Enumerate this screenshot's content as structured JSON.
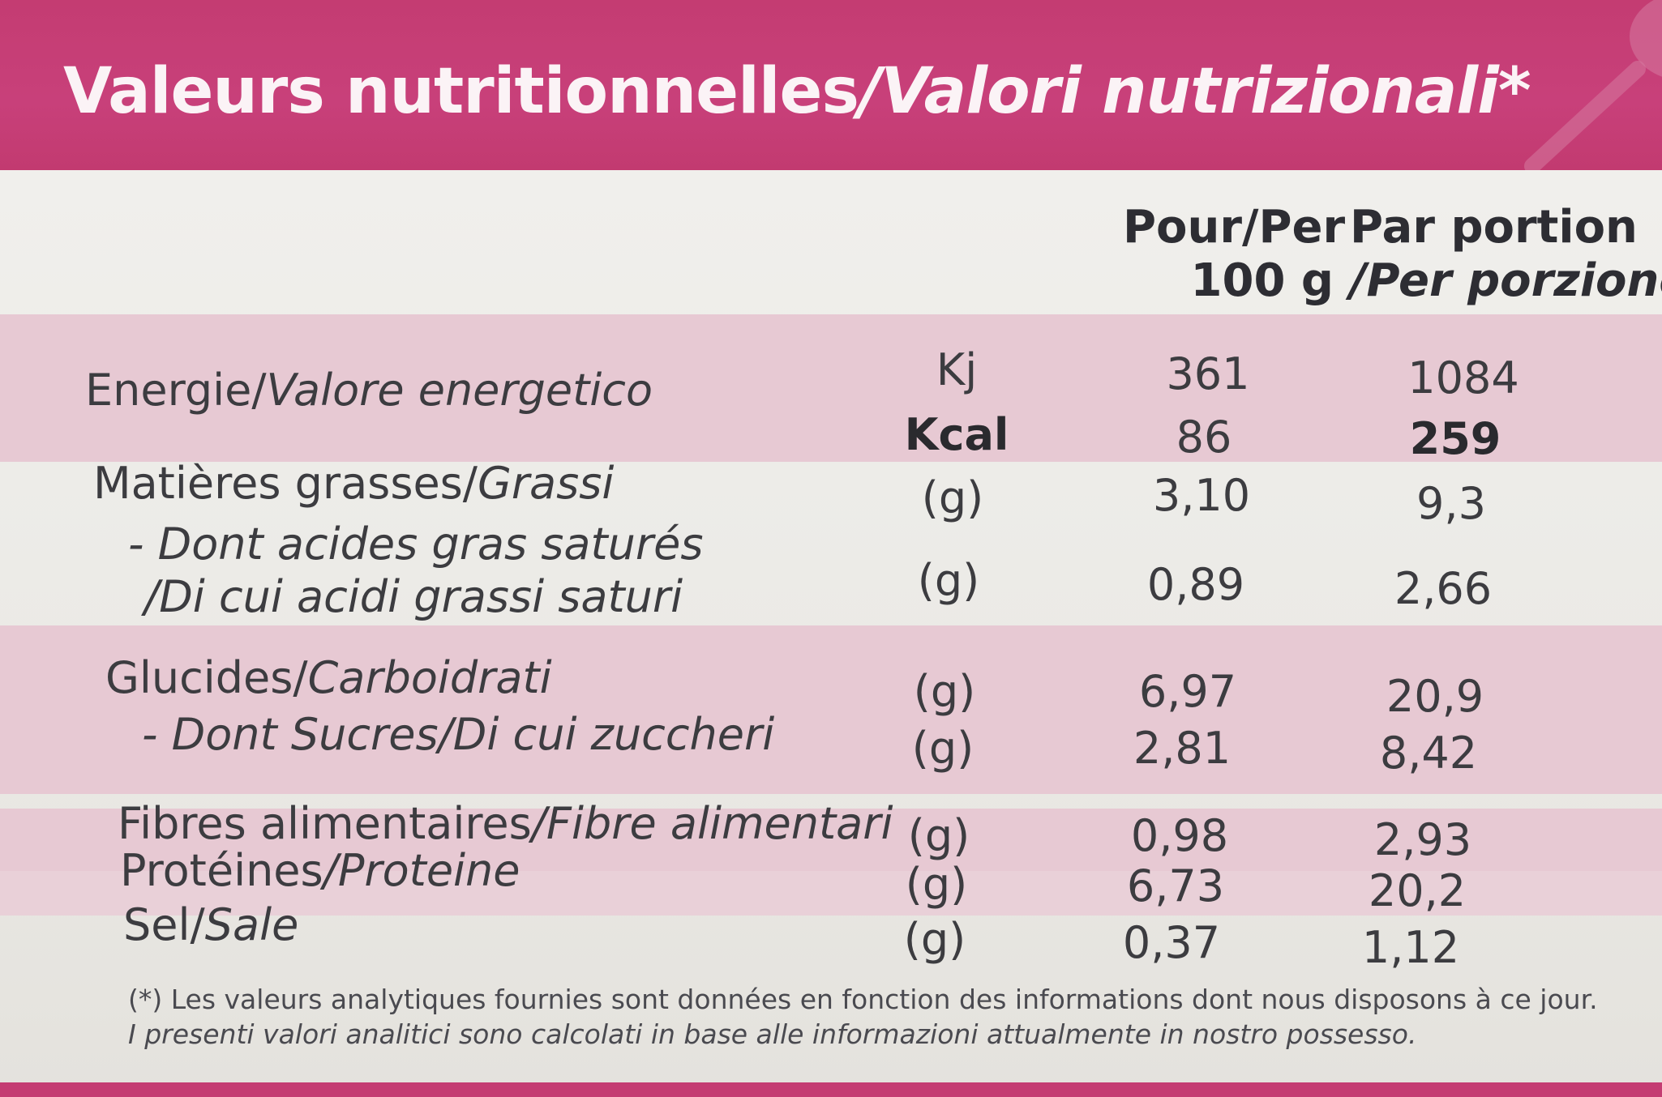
{
  "header": {
    "title_fr": "Valeurs nutritionnelles",
    "title_sep": "/",
    "title_it": "Valori nutrizionali*"
  },
  "columns": {
    "per100_line1": "Pour/Per",
    "per100_line2": "100 g",
    "portion_line1": "Par portion",
    "portion_line2": "/Per porzione"
  },
  "rows": {
    "energy": {
      "label": "Energie/",
      "label_it": "Valore energetico"
    },
    "kj": {
      "unit": "Kj",
      "per100": "361",
      "portion": "1084"
    },
    "kcal": {
      "unit": "Kcal",
      "per100": "86",
      "portion": "259"
    },
    "fat": {
      "label": "Matières grasses/",
      "label_it": "Grassi",
      "unit": "(g)",
      "per100": "3,10",
      "portion": "9,3"
    },
    "satfat": {
      "label": "- Dont acides gras saturés",
      "label_it": "/Di cui acidi grassi saturi",
      "unit": "(g)",
      "per100": "0,89",
      "portion": "2,66"
    },
    "carbs": {
      "label": "Glucides/",
      "label_it": "Carboidrati",
      "unit": "(g)",
      "per100": "6,97",
      "portion": "20,9"
    },
    "sugars": {
      "label": "- Dont Sucres/",
      "label_it": "Di cui zuccheri",
      "unit": "(g)",
      "per100": "2,81",
      "portion": "8,42"
    },
    "fibre": {
      "label": "Fibres alimentaires",
      "label_it": "/Fibre alimentari",
      "unit": "(g)",
      "per100": "0,98",
      "portion": "2,93"
    },
    "protein": {
      "label": "Protéines",
      "label_it": "/Proteine",
      "unit": "(g)",
      "per100": "6,73",
      "portion": "20,2"
    },
    "salt": {
      "label": "Sel/",
      "label_it": "Sale",
      "unit": "(g)",
      "per100": "0,37",
      "portion": "1,12"
    }
  },
  "footnote": {
    "fr": "(*) Les valeurs analytiques fournies sont données en fonction des informations dont nous disposons à ce jour.",
    "it": "I presenti valori analitici sono calcolati in base alle informazioni attualmente in nostro possesso."
  },
  "colors": {
    "brand": "#c43c72",
    "band": "#e7c9d3",
    "background": "#efeeea"
  }
}
